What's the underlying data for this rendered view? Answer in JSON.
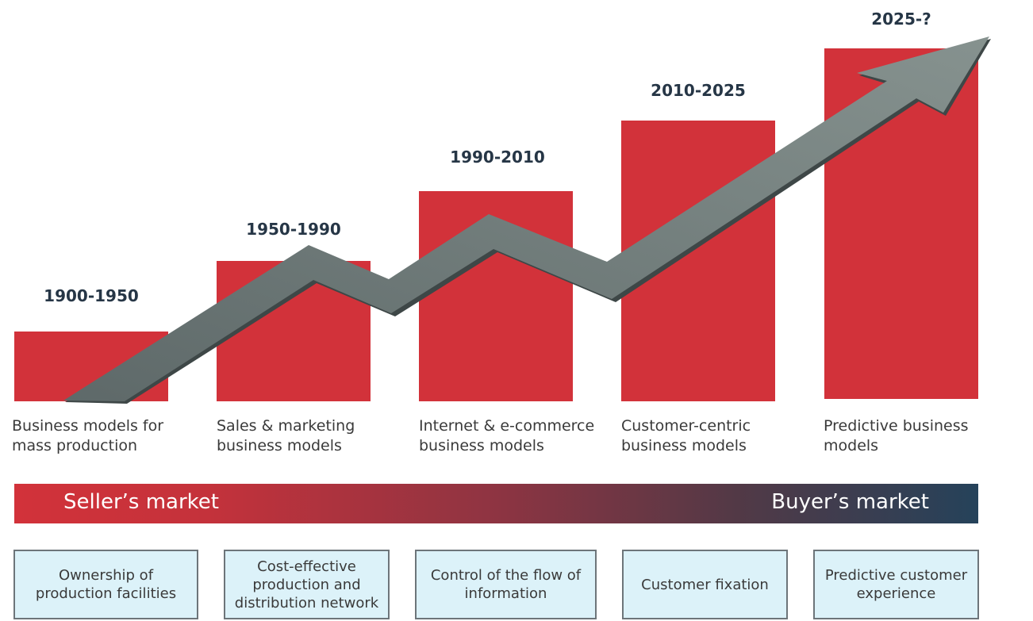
{
  "stages": [
    {
      "period": "1900-1950",
      "model": "Business models for mass production",
      "factor": "Ownership of production facilities"
    },
    {
      "period": "1950-1990",
      "model": "Sales & marketing business models",
      "factor": "Cost-effective production and distribution network"
    },
    {
      "period": "1990-2010",
      "model": "Internet & e-commerce business models",
      "factor": "Control of the flow of information"
    },
    {
      "period": "2010-2025",
      "model": "Customer-centric business models",
      "factor": "Customer fixation"
    },
    {
      "period": "2025-?",
      "model": "Predictive business models",
      "factor": "Predictive customer experience"
    }
  ],
  "market": {
    "left_label": "Seller’s market",
    "right_label": "Buyer’s market"
  },
  "colors": {
    "bar": "#d2323a",
    "arrow": "#6f7b7b",
    "band_start": "#d2323a",
    "band_end": "#25425a",
    "box_fill": "#dcf2f9"
  }
}
